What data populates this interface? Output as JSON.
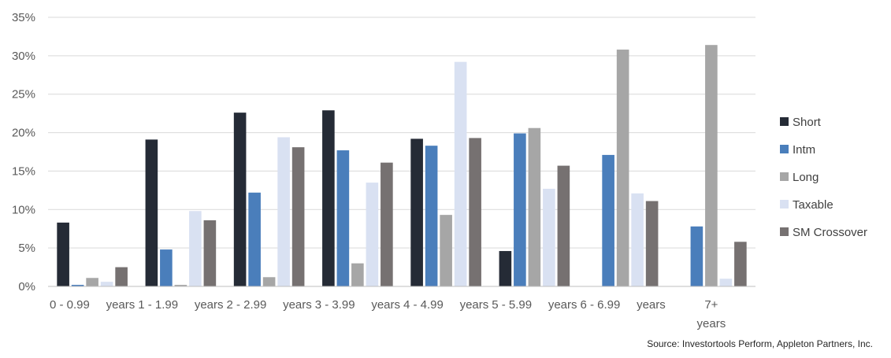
{
  "chart_data": {
    "type": "bar",
    "categories": [
      "0 - 0.99 years",
      "1 - 1.99 years",
      "2 - 2.99 years",
      "3 - 3.99 years",
      "4 - 4.99 years",
      "5 - 5.99 years",
      "6 - 6.99 years",
      "7+ years"
    ],
    "category_label_lines": [
      [
        "0 - 0.99",
        "years"
      ],
      [
        "1 - 1.99",
        "years"
      ],
      [
        "2 - 2.99",
        "years"
      ],
      [
        "3 - 3.99",
        "years"
      ],
      [
        "4 - 4.99",
        "years"
      ],
      [
        "5 - 5.99",
        "years"
      ],
      [
        "6 - 6.99",
        "years"
      ],
      [
        "7+",
        "years"
      ]
    ],
    "series": [
      {
        "name": "Short",
        "color": "#252b36",
        "values": [
          8.3,
          19.1,
          22.6,
          22.9,
          19.2,
          4.6,
          0,
          0
        ]
      },
      {
        "name": "Intm",
        "color": "#4a7ebb",
        "values": [
          0.2,
          4.8,
          12.2,
          17.7,
          18.3,
          19.9,
          17.1,
          7.8
        ]
      },
      {
        "name": "Long",
        "color": "#a6a6a6",
        "values": [
          1.1,
          0.2,
          1.2,
          3.0,
          9.3,
          20.6,
          30.8,
          31.4
        ]
      },
      {
        "name": "Taxable",
        "color": "#d9e1f2",
        "values": [
          0.6,
          9.8,
          19.4,
          13.5,
          29.2,
          12.7,
          12.1,
          1.0
        ]
      },
      {
        "name": "SM Crossover",
        "color": "#767171",
        "values": [
          2.5,
          8.6,
          18.1,
          16.1,
          19.3,
          15.7,
          11.1,
          5.8
        ]
      }
    ],
    "ylim": [
      0,
      35
    ],
    "yticks": [
      "0%",
      "5%",
      "10%",
      "15%",
      "20%",
      "25%",
      "30%",
      "35%"
    ],
    "grid": true,
    "legend_position": "right",
    "source": "Source: Investortools Perform, Appleton Partners, Inc."
  }
}
